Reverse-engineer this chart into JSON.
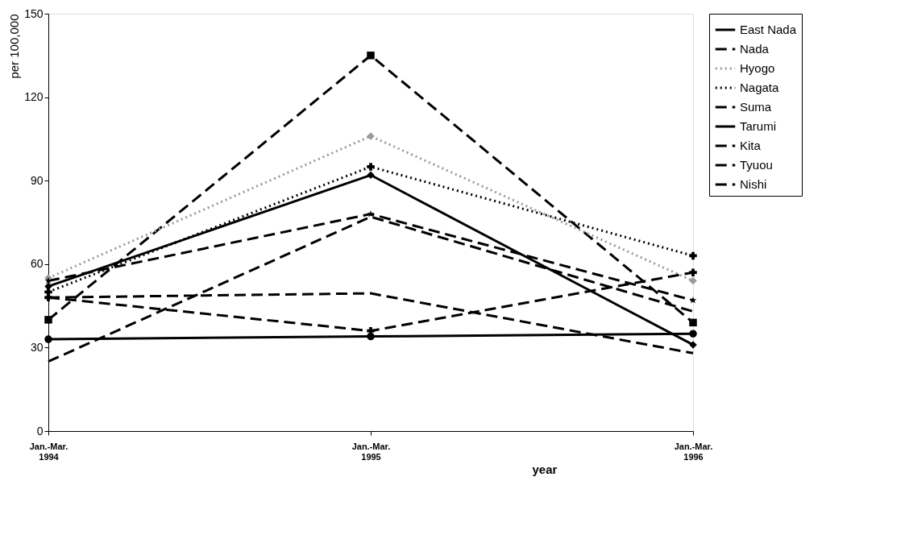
{
  "chart_data": {
    "type": "line",
    "ylabel": "per 100,000",
    "xlabel": "year",
    "categories": [
      "Jan.-Mar.\n1994",
      "Jan.-Mar.\n1995",
      "Jan.-Mar.\n1996"
    ],
    "ylim": [
      0,
      150
    ],
    "yticks": [
      0,
      30,
      60,
      90,
      120,
      150
    ],
    "grid": false,
    "legend": "right",
    "series": [
      {
        "name": "East Nada",
        "color": "#000000",
        "marker": "diamond",
        "line_style": "solid",
        "values": [
          52,
          92,
          31
        ]
      },
      {
        "name": "Nada",
        "color": "#000000",
        "marker": "square",
        "line_style": "dashed",
        "values": [
          40,
          135,
          39
        ]
      },
      {
        "name": "Hyogo",
        "color": "#999999",
        "marker": "diamond",
        "line_style": "dotted",
        "values": [
          55,
          106,
          54
        ]
      },
      {
        "name": "Nagata",
        "color": "#000000",
        "marker": "cross",
        "line_style": "dotted",
        "values": [
          50,
          95,
          63
        ]
      },
      {
        "name": "Suma",
        "color": "#000000",
        "marker": "star",
        "line_style": "dashed",
        "values": [
          54,
          78,
          47
        ]
      },
      {
        "name": "Tarumi",
        "color": "#000000",
        "marker": "circle",
        "line_style": "solid",
        "values": [
          33,
          34,
          35
        ]
      },
      {
        "name": "Kita",
        "color": "#000000",
        "marker": "cross",
        "line_style": "dashed",
        "values": [
          48,
          36,
          57
        ]
      },
      {
        "name": "Tyuou",
        "color": "#000000",
        "marker": "none",
        "line_style": "dashed",
        "values": [
          25,
          77,
          43
        ]
      },
      {
        "name": "Nishi",
        "color": "#000000",
        "marker": "none",
        "line_style": "dashed",
        "values": [
          48,
          49.5,
          28
        ]
      }
    ]
  }
}
